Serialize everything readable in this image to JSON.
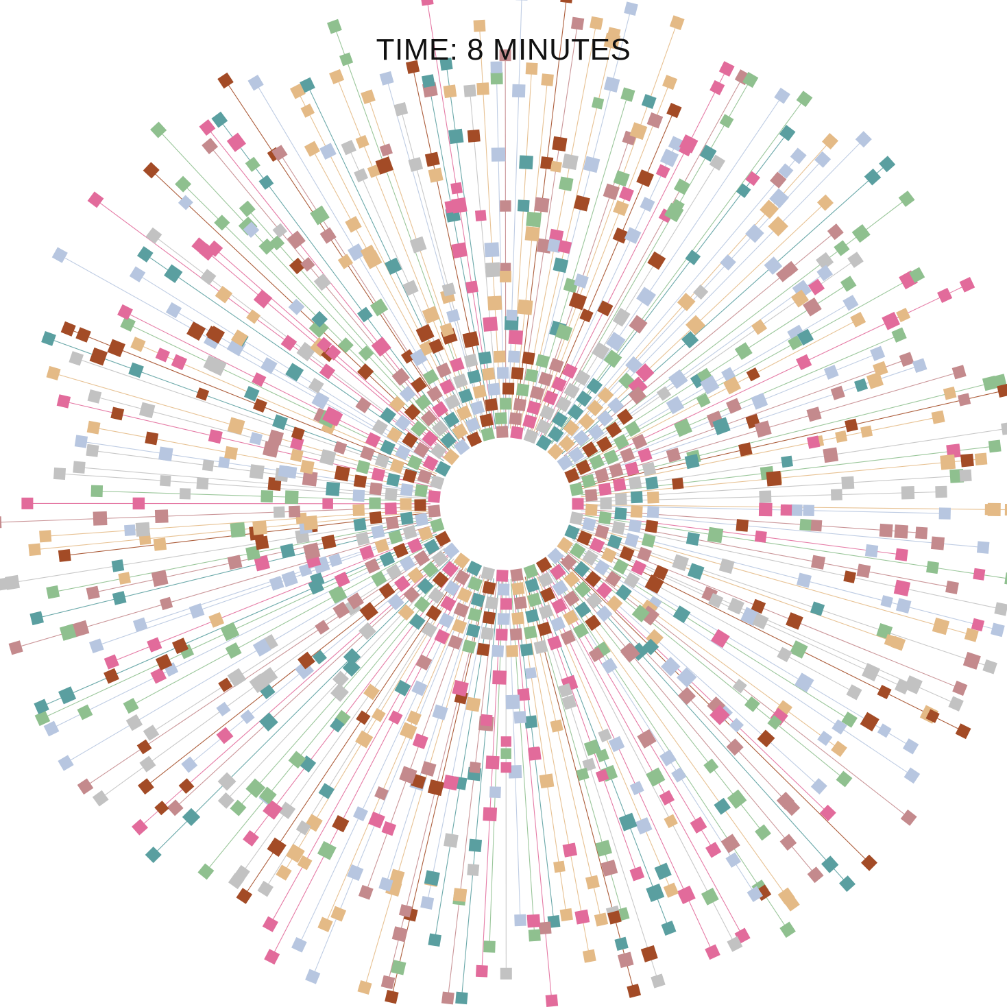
{
  "chart_data": {
    "type": "scatter",
    "title": "TIME: 8 MINUTES",
    "xlabel": "",
    "ylabel": "",
    "grid": false,
    "legend": "none",
    "rings": 14,
    "spokes": 200,
    "seed": 8,
    "colors": [
      "#e26b9b",
      "#e4ba86",
      "#8fc08f",
      "#c2c2c2",
      "#b7c6e0",
      "#c48a8d",
      "#5a9fa0",
      "#a34b26"
    ]
  }
}
